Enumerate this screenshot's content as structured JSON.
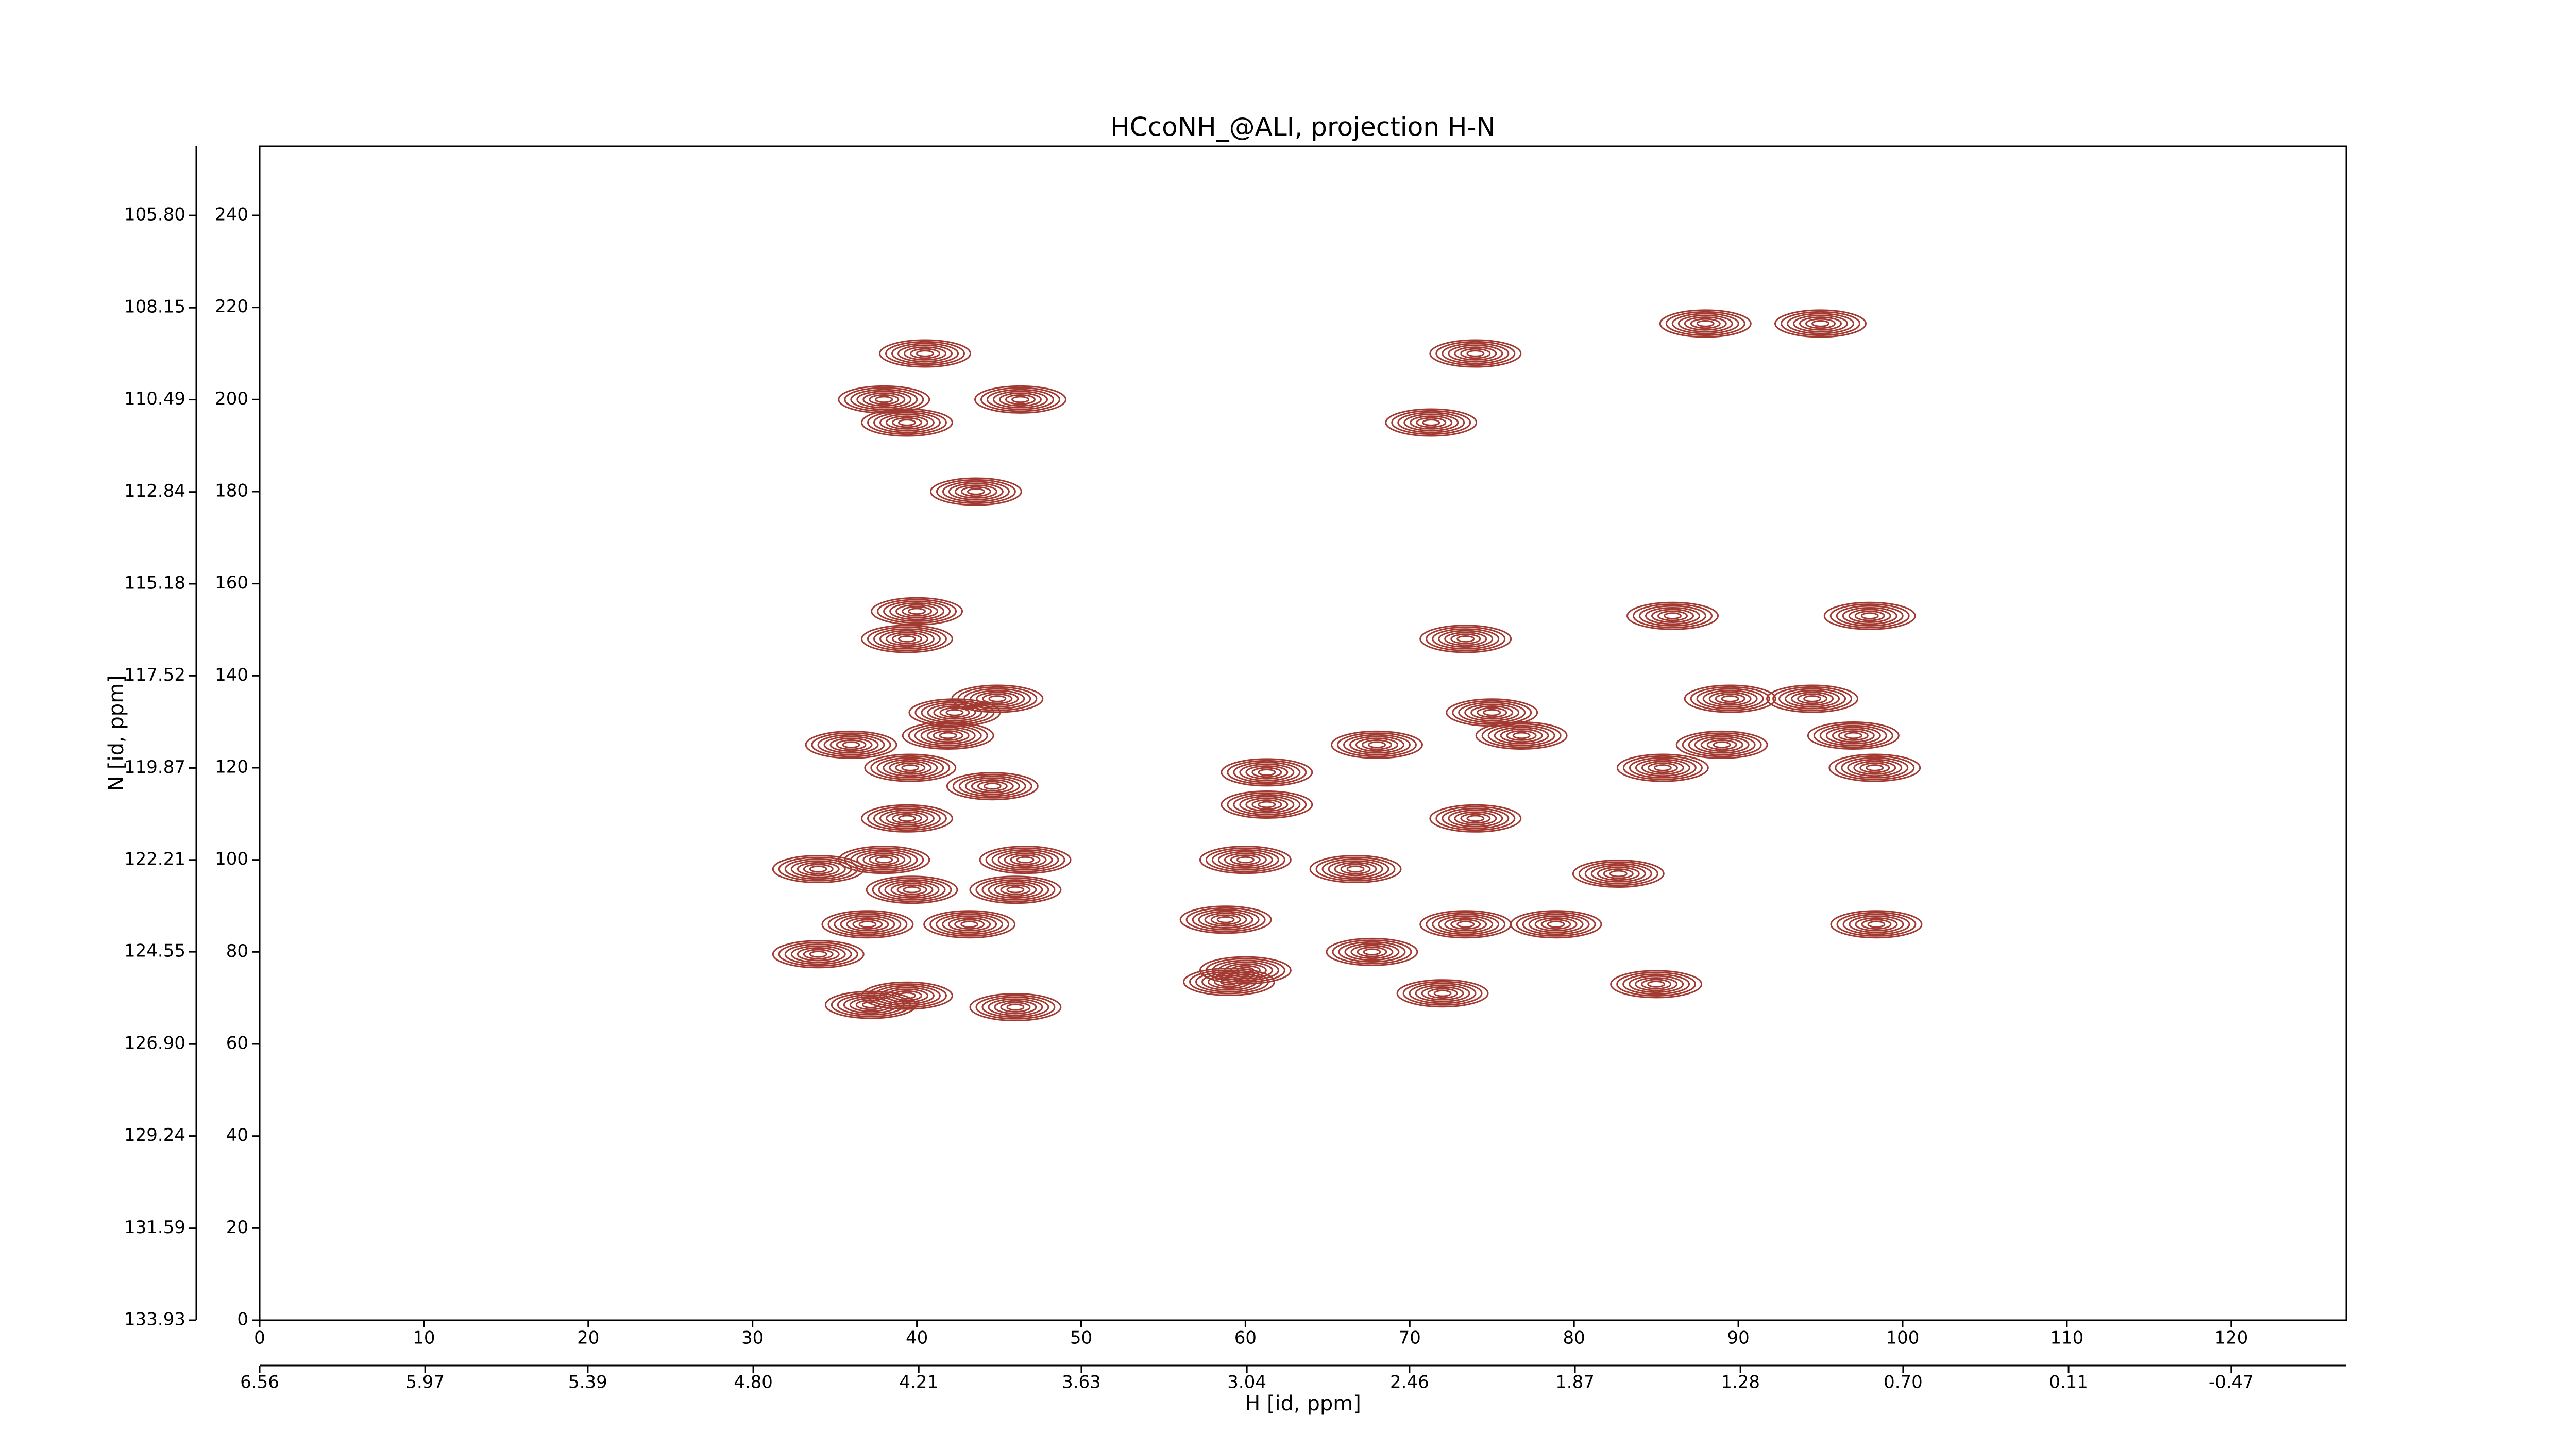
{
  "chart_data": {
    "type": "contour",
    "title": "HCcoNH_@ALI, projection H-N",
    "xlabel": "H [id, ppm]",
    "ylabel": "N [id, ppm]",
    "color": "#a33a32",
    "x": [
      38,
      39.4,
      40.5,
      46.3,
      43.6,
      71.3,
      74,
      88,
      95,
      39.4,
      40,
      86,
      98,
      73.4,
      44.9,
      42.3,
      41.9,
      36,
      39.6,
      44.6,
      61.3,
      61.3,
      68,
      75,
      76.8,
      89.5,
      89,
      85.4,
      94.5,
      97,
      98.3,
      39.4,
      74,
      34,
      38,
      39.7,
      46.6,
      46,
      60,
      66.7,
      82.7,
      37,
      43.2,
      58.8,
      73.4,
      78.9,
      98.4,
      34,
      67.7,
      60,
      59,
      39.4,
      37.2,
      46,
      72,
      85
    ],
    "values": [
      200,
      195,
      210,
      200,
      180,
      195,
      210,
      216.5,
      216.5,
      148,
      154,
      153,
      153,
      148,
      135,
      132,
      127,
      125,
      120,
      116,
      119,
      112,
      125,
      132,
      127,
      135,
      125,
      120,
      135,
      127,
      120,
      109,
      109,
      98,
      100,
      93.5,
      100,
      93.5,
      100,
      98,
      97,
      86,
      86,
      87,
      86,
      86,
      86,
      79.5,
      80,
      76,
      73.5,
      70.5,
      68.5,
      68,
      71,
      73
    ],
    "xlim": [
      0,
      127
    ],
    "xticks": [
      0,
      10,
      20,
      30,
      40,
      50,
      60,
      70,
      80,
      90,
      100,
      110,
      120
    ],
    "x2lim": [
      6.56,
      -0.88
    ],
    "x2ticks": [
      6.56,
      5.97,
      5.39,
      {
        "value": 4.8,
        "label": "4.80"
      },
      4.21,
      3.63,
      3.04,
      2.46,
      1.87,
      1.28,
      {
        "value": 0.7,
        "label": "0.70"
      },
      0.11,
      -0.47
    ],
    "ylim": [
      0,
      255
    ],
    "yticks": [
      0,
      20,
      40,
      60,
      80,
      100,
      120,
      140,
      160,
      180,
      200,
      220,
      240
    ],
    "y2lim": [
      133.93,
      104.04
    ],
    "y2ticks": [
      133.93,
      131.59,
      129.24,
      {
        "value": 126.9,
        "label": "126.90"
      },
      124.55,
      122.21,
      119.87,
      117.52,
      115.18,
      112.84,
      110.49,
      108.15,
      {
        "value": 105.8,
        "label": "105.80"
      }
    ]
  }
}
